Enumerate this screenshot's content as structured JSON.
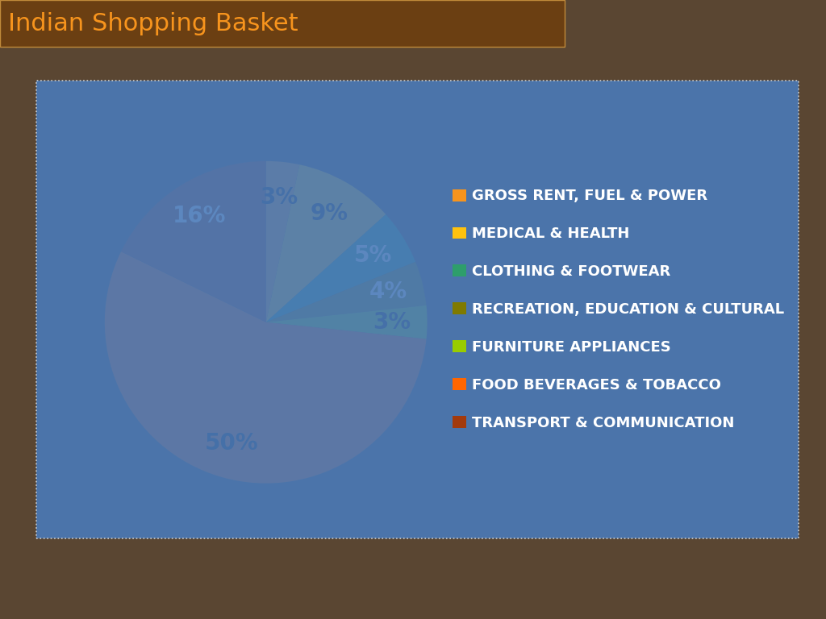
{
  "chart_data": {
    "type": "pie",
    "title": "Indian Shopping Basket",
    "categories": [
      "GROSS RENT, FUEL & POWER",
      "MEDICAL & HEALTH",
      "CLOTHING & FOOTWEAR",
      "RECREATION, EDUCATION & CULTURAL",
      "FURNITURE APPLIANCES",
      "FOOD BEVERAGES & TOBACCO",
      "TRANSPORT & COMMUNICATION"
    ],
    "values": [
      3,
      9,
      5,
      4,
      3,
      50,
      16
    ],
    "value_labels": [
      "3%",
      "9%",
      "5%",
      "4%",
      "3%",
      "50%",
      "16%"
    ],
    "colors": [
      "#F7941D",
      "#FFC20E",
      "#2E9E6B",
      "#7F7A00",
      "#99CC00",
      "#FF6600",
      "#A33A0C"
    ],
    "data_labels": true,
    "legend": "right"
  }
}
